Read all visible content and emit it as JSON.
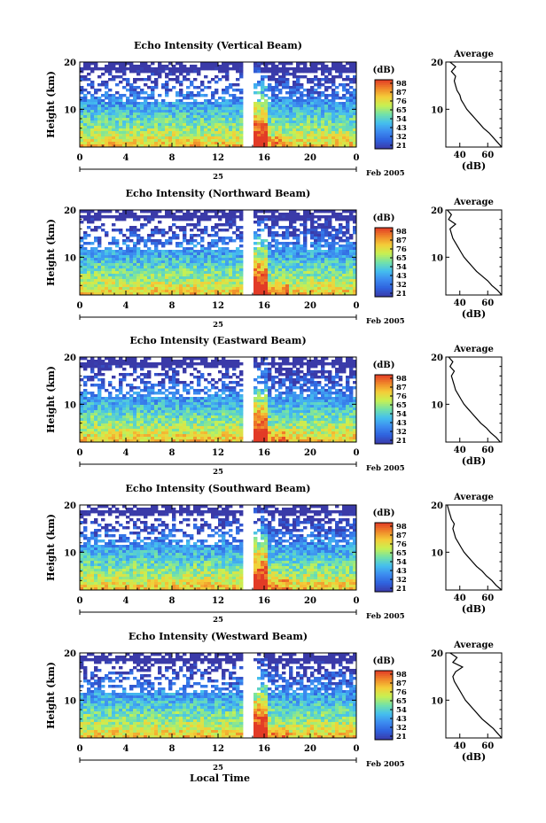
{
  "chart_data": [
    {
      "type": "heatmap",
      "title": "Echo Intensity (Vertical Beam)",
      "ylabel": "Height (km)",
      "x_ticks": [
        "0",
        "4",
        "8",
        "12",
        "16",
        "20",
        "0"
      ],
      "xlim": [
        0,
        24
      ],
      "y_ticks": [
        "20",
        "10"
      ],
      "ylim": [
        2,
        20
      ],
      "date_label": "25",
      "month_label": "Feb 2005",
      "colorbar": {
        "unit": "(dB)",
        "ticks": [
          "98",
          "87",
          "76",
          "65",
          "54",
          "43",
          "32",
          "21"
        ]
      },
      "average": {
        "title": "Average",
        "xlabel": "(dB)",
        "x_ticks": [
          "40",
          "60"
        ],
        "xlim": [
          30,
          70
        ],
        "y_ticks": [
          "20",
          "10"
        ],
        "profile": [
          [
            70,
            2
          ],
          [
            67,
            3
          ],
          [
            64,
            4
          ],
          [
            61,
            5
          ],
          [
            57,
            6
          ],
          [
            54,
            7
          ],
          [
            51,
            8
          ],
          [
            48,
            9
          ],
          [
            45,
            10
          ],
          [
            43,
            11
          ],
          [
            41,
            12
          ],
          [
            40,
            13
          ],
          [
            38,
            14
          ],
          [
            37,
            15
          ],
          [
            36,
            16
          ],
          [
            37,
            17
          ],
          [
            34,
            18
          ],
          [
            37,
            19
          ],
          [
            33,
            20
          ]
        ]
      }
    },
    {
      "type": "heatmap",
      "title": "Echo Intensity (Northward Beam)",
      "ylabel": "Height (km)",
      "x_ticks": [
        "0",
        "4",
        "8",
        "12",
        "16",
        "20",
        "0"
      ],
      "xlim": [
        0,
        24
      ],
      "y_ticks": [
        "20",
        "10"
      ],
      "ylim": [
        2,
        20
      ],
      "date_label": "25",
      "month_label": "Feb 2005",
      "colorbar": {
        "unit": "(dB)",
        "ticks": [
          "98",
          "87",
          "76",
          "65",
          "54",
          "43",
          "32",
          "21"
        ]
      },
      "average": {
        "title": "Average",
        "xlabel": "(dB)",
        "x_ticks": [
          "40",
          "60"
        ],
        "xlim": [
          30,
          70
        ],
        "y_ticks": [
          "20",
          "10"
        ],
        "profile": [
          [
            70,
            2
          ],
          [
            67,
            3
          ],
          [
            63,
            4
          ],
          [
            60,
            5
          ],
          [
            56,
            6
          ],
          [
            52,
            7
          ],
          [
            49,
            8
          ],
          [
            46,
            9
          ],
          [
            43,
            10
          ],
          [
            41,
            11
          ],
          [
            39,
            12
          ],
          [
            37,
            13
          ],
          [
            35,
            14
          ],
          [
            34,
            15
          ],
          [
            33,
            16
          ],
          [
            37,
            17
          ],
          [
            32,
            18
          ],
          [
            34,
            19
          ],
          [
            31,
            20
          ]
        ]
      }
    },
    {
      "type": "heatmap",
      "title": "Echo Intensity (Eastward Beam)",
      "ylabel": "Height (km)",
      "x_ticks": [
        "0",
        "4",
        "8",
        "12",
        "16",
        "20",
        "0"
      ],
      "xlim": [
        0,
        24
      ],
      "y_ticks": [
        "20",
        "10"
      ],
      "ylim": [
        2,
        20
      ],
      "date_label": "25",
      "month_label": "Feb 2005",
      "colorbar": {
        "unit": "(dB)",
        "ticks": [
          "98",
          "87",
          "76",
          "65",
          "54",
          "43",
          "32",
          "21"
        ]
      },
      "average": {
        "title": "Average",
        "xlabel": "(dB)",
        "x_ticks": [
          "40",
          "60"
        ],
        "xlim": [
          30,
          70
        ],
        "y_ticks": [
          "20",
          "10"
        ],
        "profile": [
          [
            69,
            2
          ],
          [
            66,
            3
          ],
          [
            62,
            4
          ],
          [
            59,
            5
          ],
          [
            55,
            6
          ],
          [
            52,
            7
          ],
          [
            49,
            8
          ],
          [
            46,
            9
          ],
          [
            43,
            10
          ],
          [
            41,
            11
          ],
          [
            39,
            12
          ],
          [
            37,
            13
          ],
          [
            36,
            14
          ],
          [
            35,
            15
          ],
          [
            34,
            16
          ],
          [
            36,
            17
          ],
          [
            33,
            18
          ],
          [
            35,
            19
          ],
          [
            32,
            20
          ]
        ]
      }
    },
    {
      "type": "heatmap",
      "title": "Echo Intensity (Southward Beam)",
      "ylabel": "Height (km)",
      "x_ticks": [
        "0",
        "4",
        "8",
        "12",
        "16",
        "20",
        "0"
      ],
      "xlim": [
        0,
        24
      ],
      "y_ticks": [
        "20",
        "10"
      ],
      "ylim": [
        2,
        20
      ],
      "date_label": "25",
      "month_label": "Feb 2005",
      "colorbar": {
        "unit": "(dB)",
        "ticks": [
          "98",
          "87",
          "76",
          "65",
          "54",
          "43",
          "32",
          "21"
        ]
      },
      "average": {
        "title": "Average",
        "xlabel": "(dB)",
        "x_ticks": [
          "40",
          "60"
        ],
        "xlim": [
          30,
          70
        ],
        "y_ticks": [
          "20",
          "10"
        ],
        "profile": [
          [
            70,
            2
          ],
          [
            66,
            3
          ],
          [
            63,
            4
          ],
          [
            59,
            5
          ],
          [
            56,
            6
          ],
          [
            52,
            7
          ],
          [
            49,
            8
          ],
          [
            46,
            9
          ],
          [
            43,
            10
          ],
          [
            41,
            11
          ],
          [
            39,
            12
          ],
          [
            37,
            13
          ],
          [
            36,
            14
          ],
          [
            35,
            15
          ],
          [
            36,
            16
          ],
          [
            34,
            17
          ],
          [
            33,
            18
          ],
          [
            32,
            19
          ],
          [
            31,
            20
          ]
        ]
      }
    },
    {
      "type": "heatmap",
      "title": "Echo Intensity (Westward Beam)",
      "ylabel": "Height (km)",
      "xlabel": "Local Time",
      "x_ticks": [
        "0",
        "4",
        "8",
        "12",
        "16",
        "20",
        "0"
      ],
      "xlim": [
        0,
        24
      ],
      "y_ticks": [
        "20",
        "10"
      ],
      "ylim": [
        2,
        20
      ],
      "date_label": "25",
      "month_label": "Feb 2005",
      "colorbar": {
        "unit": "(dB)",
        "ticks": [
          "98",
          "87",
          "76",
          "65",
          "54",
          "43",
          "32",
          "21"
        ]
      },
      "average": {
        "title": "Average",
        "xlabel": "(dB)",
        "x_ticks": [
          "40",
          "60"
        ],
        "xlim": [
          30,
          70
        ],
        "y_ticks": [
          "20",
          "10"
        ],
        "profile": [
          [
            70,
            2
          ],
          [
            67,
            3
          ],
          [
            64,
            4
          ],
          [
            60,
            5
          ],
          [
            56,
            6
          ],
          [
            53,
            7
          ],
          [
            50,
            8
          ],
          [
            47,
            9
          ],
          [
            44,
            10
          ],
          [
            42,
            11
          ],
          [
            40,
            12
          ],
          [
            38,
            13
          ],
          [
            36,
            14
          ],
          [
            35,
            15
          ],
          [
            37,
            16
          ],
          [
            42,
            17
          ],
          [
            35,
            18
          ],
          [
            38,
            19
          ],
          [
            33,
            20
          ]
        ]
      }
    }
  ]
}
